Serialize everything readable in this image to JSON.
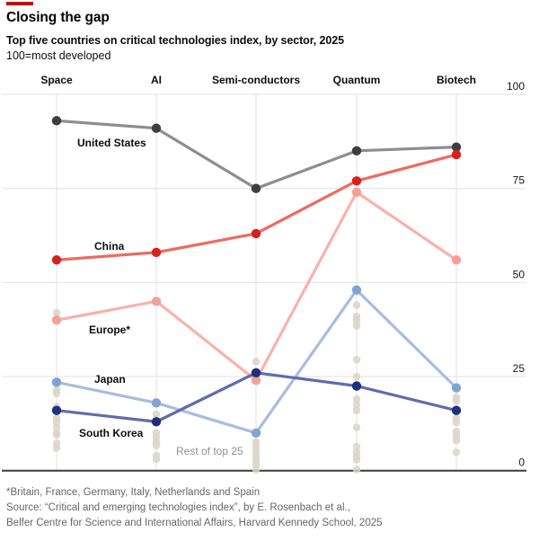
{
  "header": {
    "title": "Closing the gap",
    "subtitle": "Top five countries on critical technologies index, by sector, 2025",
    "unit_note": "100=most developed"
  },
  "chart_data": {
    "type": "line",
    "title": "Top five countries on critical technologies index, by sector, 2025",
    "categories": [
      "Space",
      "AI",
      "Semi-conductors",
      "Quantum",
      "Biotech"
    ],
    "y_axis": {
      "ticks": [
        0,
        25,
        50,
        75,
        100
      ],
      "range": [
        0,
        100
      ],
      "side": "right"
    },
    "grid": {
      "horizontal": true,
      "vertical": true
    },
    "series": [
      {
        "name": "Europe*",
        "line_color": "#f7b3ab",
        "dot_color": "#f4a098",
        "values": [
          40,
          45,
          24,
          74,
          56
        ],
        "label_pos": [
          99,
          293
        ]
      },
      {
        "name": "Japan",
        "line_color": "#a8bddf",
        "dot_color": "#84a3d3",
        "values": [
          23.5,
          18,
          10,
          48,
          22
        ],
        "label_pos": [
          105,
          348
        ]
      },
      {
        "name": "United States",
        "line_color": "#8e8e8e",
        "dot_color": "#3e3e3e",
        "values": [
          93,
          91,
          75,
          85,
          86
        ],
        "label_pos": [
          86,
          85
        ]
      },
      {
        "name": "China",
        "line_color": "#ee6a62",
        "dot_color": "#d7211c",
        "values": [
          56,
          58,
          63,
          77,
          84
        ],
        "label_pos": [
          105,
          200
        ]
      },
      {
        "name": "South Korea",
        "line_color": "#5e6cab",
        "dot_color": "#202f7c",
        "values": [
          16,
          13,
          26,
          22.5,
          16
        ],
        "label_pos": [
          88,
          408
        ]
      }
    ],
    "rest_of_top25": {
      "label": "Rest of top 25",
      "label_pos": [
        196,
        428
      ],
      "dot_color": "#d9d5c9",
      "values_by_category": [
        [
          42,
          21.5,
          20.5,
          17,
          14,
          12.8,
          11.5,
          10,
          9.5,
          7.3,
          6
        ],
        [
          15,
          10,
          8.8,
          7.6,
          6.7,
          4,
          3
        ],
        [
          29,
          7.6,
          6.4,
          5.3,
          4.1,
          2.9,
          1.7,
          0.3
        ],
        [
          44,
          41,
          40,
          38.5,
          29.5,
          25,
          19,
          17.5,
          16,
          11.5,
          6.4,
          4.9,
          3.7,
          2.9,
          0.3
        ],
        [
          19.5,
          18.5,
          14,
          12.8,
          10.4,
          9.2,
          8,
          4.9
        ]
      ]
    },
    "colors": {
      "gridline": "#e2e2e2",
      "zero_axis": "#3c3c3c",
      "axis_label": "#161616",
      "category_label": "#0d0d0d",
      "series_label": "#0d0d0d",
      "rest_label": "#8f8f8f",
      "accent_red": "#b6150c"
    }
  },
  "footer": {
    "lines": [
      "*Britain, France, Germany, Italy, Netherlands and Spain",
      "Source: “Critical and emerging technologies index”, by E. Rosenbach et al.,",
      "Belfer Centre for Science and International Affairs, Harvard Kennedy School, 2025"
    ]
  }
}
